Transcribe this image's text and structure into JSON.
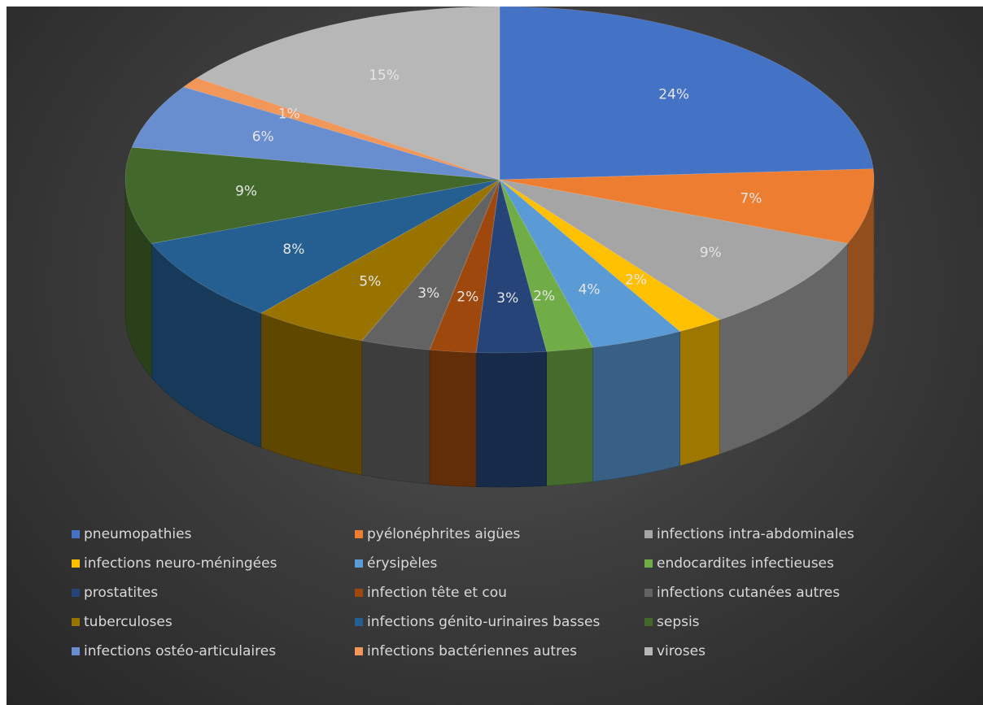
{
  "chart_data": {
    "type": "pie",
    "style": "3d",
    "legend_position": "bottom",
    "slices": [
      {
        "label": "pneumopathies",
        "value": 24,
        "pct_label": "24%",
        "color": "#4472c4"
      },
      {
        "label": "pyélonéphrites aigües",
        "value": 7,
        "pct_label": "7%",
        "color": "#ed7d31"
      },
      {
        "label": "infections intra-abdominales",
        "value": 9,
        "pct_label": "9%",
        "color": "#a5a5a5"
      },
      {
        "label": "infections neuro-méningées",
        "value": 2,
        "pct_label": "2%",
        "color": "#ffc000"
      },
      {
        "label": "érysipèles",
        "value": 4,
        "pct_label": "4%",
        "color": "#5b9bd5"
      },
      {
        "label": "endocardites infectieuses",
        "value": 2,
        "pct_label": "2%",
        "color": "#70ad47"
      },
      {
        "label": "prostatites",
        "value": 3,
        "pct_label": "3%",
        "color": "#264478"
      },
      {
        "label": "infection tête et cou",
        "value": 2,
        "pct_label": "2%",
        "color": "#9e480e"
      },
      {
        "label": "infections cutanées autres",
        "value": 3,
        "pct_label": "3%",
        "color": "#636363"
      },
      {
        "label": "tuberculoses",
        "value": 5,
        "pct_label": "5%",
        "color": "#997300"
      },
      {
        "label": "infections génito-urinaires basses",
        "value": 8,
        "pct_label": "8%",
        "color": "#255e91"
      },
      {
        "label": "sepsis",
        "value": 9,
        "pct_label": "9%",
        "color": "#43682b"
      },
      {
        "label": "infections ostéo-articulaires",
        "value": 6,
        "pct_label": "6%",
        "color": "#698ed0"
      },
      {
        "label": "infections bactériennes autres",
        "value": 1,
        "pct_label": "1%",
        "color": "#f1975a"
      },
      {
        "label": "viroses",
        "value": 15,
        "pct_label": "15%",
        "color": "#b7b7b7"
      }
    ]
  }
}
